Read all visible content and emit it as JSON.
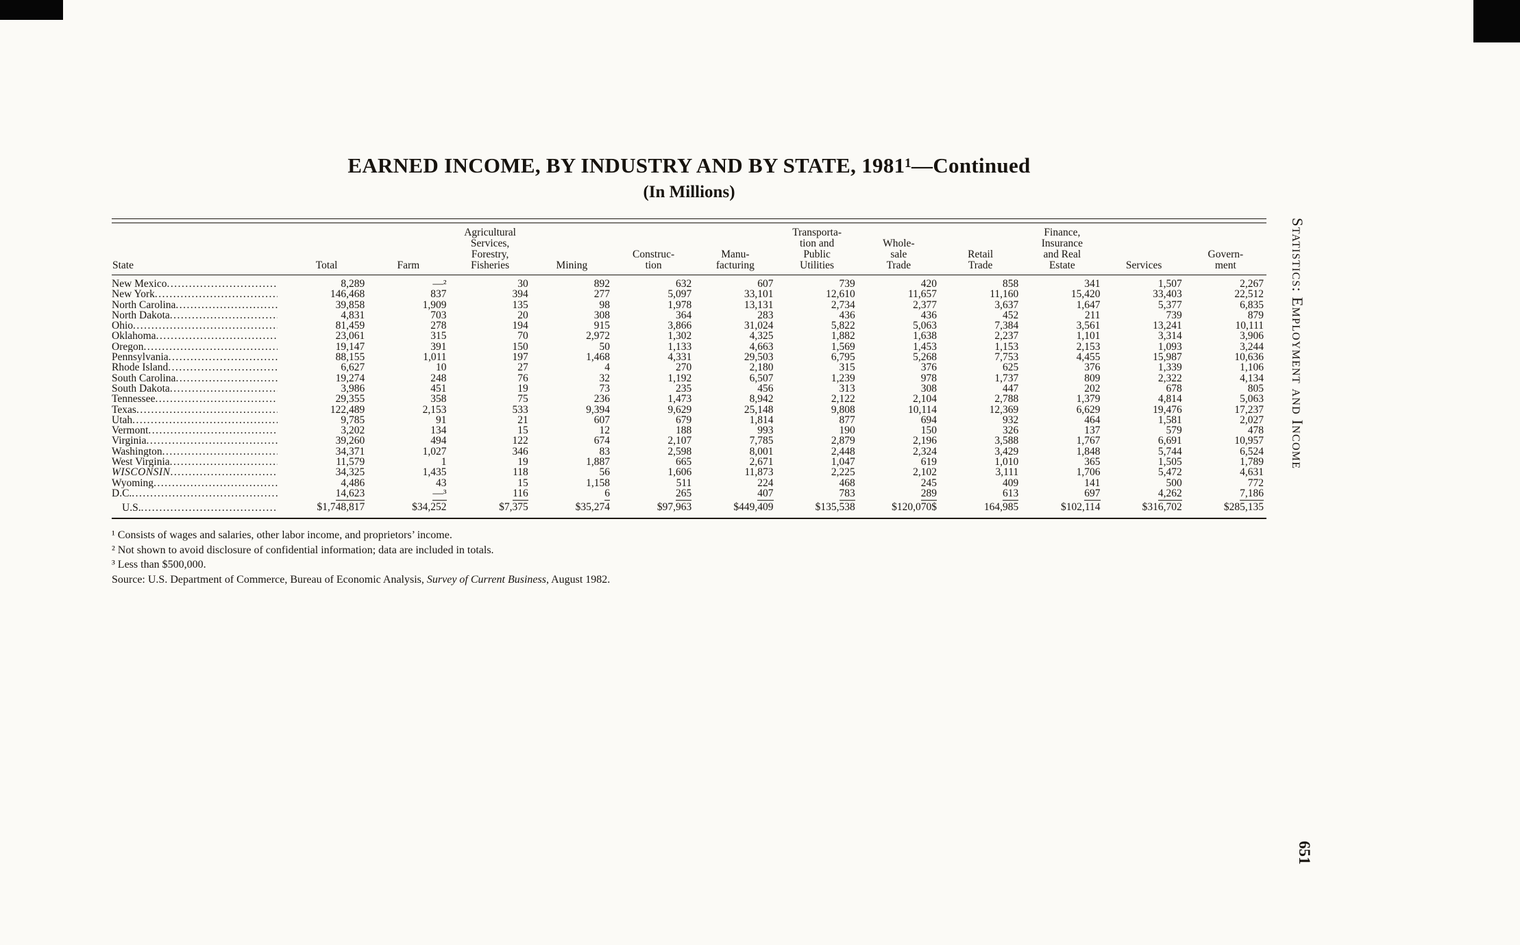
{
  "title": "EARNED INCOME, BY INDUSTRY AND BY STATE, 1981¹—Continued",
  "subtitle": "(In Millions)",
  "side_label": "Statistics: Employment and Income",
  "page_number": "651",
  "table": {
    "columns": [
      "State",
      "Total",
      "Farm",
      "Agricultural\nServices,\nForestry,\nFisheries",
      "Mining",
      "Construc-\ntion",
      "Manu-\nfacturing",
      "Transporta-\ntion and\nPublic\nUtilities",
      "Whole-\nsale\nTrade",
      "Retail\nTrade",
      "Finance,\nInsurance\nand Real\nEstate",
      "Services",
      "Govern-\nment"
    ],
    "rows": [
      {
        "state": "New Mexico",
        "values": [
          "8,289",
          "—²",
          "30",
          "892",
          "632",
          "607",
          "739",
          "420",
          "858",
          "341",
          "1,507",
          "2,267"
        ]
      },
      {
        "state": "New York",
        "values": [
          "146,468",
          "837",
          "394",
          "277",
          "5,097",
          "33,101",
          "12,610",
          "11,657",
          "11,160",
          "15,420",
          "33,403",
          "22,512"
        ]
      },
      {
        "state": "North Carolina",
        "values": [
          "39,858",
          "1,909",
          "135",
          "98",
          "1,978",
          "13,131",
          "2,734",
          "2,377",
          "3,637",
          "1,647",
          "5,377",
          "6,835"
        ]
      },
      {
        "state": "North Dakota",
        "values": [
          "4,831",
          "703",
          "20",
          "308",
          "364",
          "283",
          "436",
          "436",
          "452",
          "211",
          "739",
          "879"
        ]
      },
      {
        "state": "Ohio",
        "values": [
          "81,459",
          "278",
          "194",
          "915",
          "3,866",
          "31,024",
          "5,822",
          "5,063",
          "7,384",
          "3,561",
          "13,241",
          "10,111"
        ]
      },
      {
        "state": "Oklahoma",
        "values": [
          "23,061",
          "315",
          "70",
          "2,972",
          "1,302",
          "4,325",
          "1,882",
          "1,638",
          "2,237",
          "1,101",
          "3,314",
          "3,906"
        ]
      },
      {
        "state": "Oregon",
        "values": [
          "19,147",
          "391",
          "150",
          "50",
          "1,133",
          "4,663",
          "1,569",
          "1,453",
          "1,153",
          "2,153",
          "1,093",
          "3,244"
        ]
      },
      {
        "state": "Pennsylvania",
        "values": [
          "88,155",
          "1,011",
          "197",
          "1,468",
          "4,331",
          "29,503",
          "6,795",
          "5,268",
          "7,753",
          "4,455",
          "15,987",
          "10,636"
        ]
      },
      {
        "state": "Rhode Island",
        "values": [
          "6,627",
          "10",
          "27",
          "4",
          "270",
          "2,180",
          "315",
          "376",
          "625",
          "376",
          "1,339",
          "1,106"
        ]
      },
      {
        "state": "South Carolina",
        "values": [
          "19,274",
          "248",
          "76",
          "32",
          "1,192",
          "6,507",
          "1,239",
          "978",
          "1,737",
          "809",
          "2,322",
          "4,134"
        ]
      },
      {
        "state": "South Dakota",
        "values": [
          "3,986",
          "451",
          "19",
          "73",
          "235",
          "456",
          "313",
          "308",
          "447",
          "202",
          "678",
          "805"
        ]
      },
      {
        "state": "Tennessee",
        "values": [
          "29,355",
          "358",
          "75",
          "236",
          "1,473",
          "8,942",
          "2,122",
          "2,104",
          "2,788",
          "1,379",
          "4,814",
          "5,063"
        ]
      },
      {
        "state": "Texas",
        "values": [
          "122,489",
          "2,153",
          "533",
          "9,394",
          "9,629",
          "25,148",
          "9,808",
          "10,114",
          "12,369",
          "6,629",
          "19,476",
          "17,237"
        ]
      },
      {
        "state": "Utah",
        "values": [
          "9,785",
          "91",
          "21",
          "607",
          "679",
          "1,814",
          "877",
          "694",
          "932",
          "464",
          "1,581",
          "2,027"
        ]
      },
      {
        "state": "Vermont",
        "values": [
          "3,202",
          "134",
          "15",
          "12",
          "188",
          "993",
          "190",
          "150",
          "326",
          "137",
          "579",
          "478"
        ]
      },
      {
        "state": "Virginia",
        "values": [
          "39,260",
          "494",
          "122",
          "674",
          "2,107",
          "7,785",
          "2,879",
          "2,196",
          "3,588",
          "1,767",
          "6,691",
          "10,957"
        ]
      },
      {
        "state": "Washington",
        "values": [
          "34,371",
          "1,027",
          "346",
          "83",
          "2,598",
          "8,001",
          "2,448",
          "2,324",
          "3,429",
          "1,848",
          "5,744",
          "6,524"
        ]
      },
      {
        "state": "West Virginia",
        "values": [
          "11,579",
          "1",
          "19",
          "1,887",
          "665",
          "2,671",
          "1,047",
          "619",
          "1,010",
          "365",
          "1,505",
          "1,789"
        ]
      },
      {
        "state": "WISCONSIN",
        "emphasis": true,
        "values": [
          "34,325",
          "1,435",
          "118",
          "56",
          "1,606",
          "11,873",
          "2,225",
          "2,102",
          "3,111",
          "1,706",
          "5,472",
          "4,631"
        ]
      },
      {
        "state": "Wyoming",
        "values": [
          "4,486",
          "43",
          "15",
          "1,158",
          "511",
          "224",
          "468",
          "245",
          "409",
          "141",
          "500",
          "772"
        ]
      },
      {
        "state": "D.C.",
        "rule_under": true,
        "values": [
          "14,623",
          "—³",
          "116",
          "6",
          "265",
          "407",
          "783",
          "289",
          "613",
          "697",
          "4,262",
          "7,186"
        ]
      }
    ],
    "total_row": {
      "state": "U.S.",
      "values": [
        "$1,748,817",
        "$34,252",
        "$7,375",
        "$35,274",
        "$97,963",
        "$449,409",
        "$135,538",
        "$120,070$",
        "164,985",
        "$102,114",
        "$316,702",
        "$285,135"
      ]
    }
  },
  "footnotes": [
    "¹ Consists of wages and salaries, other labor income, and proprietors’ income.",
    "² Not shown to avoid disclosure of confidential information; data are included in totals.",
    "³ Less than $500,000."
  ],
  "source": {
    "prefix": "Source: U.S. Department of Commerce, Bureau of Economic Analysis, ",
    "italic": "Survey of Current Business",
    "suffix": ", August 1982."
  }
}
